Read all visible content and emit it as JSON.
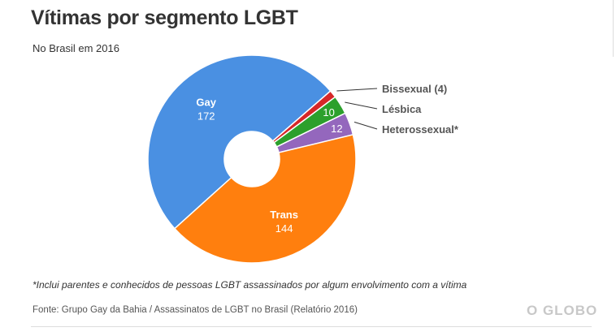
{
  "chart_data": {
    "type": "pie",
    "title": "Vítimas por segmento LGBT",
    "subtitle": "No Brasil em 2016",
    "donut": true,
    "slices": [
      {
        "label": "Gay",
        "value": 172,
        "color": "#4a90e2",
        "value_label": "172"
      },
      {
        "label": "Bissexual (4)",
        "value": 4,
        "color": "#d62728",
        "value_label": ""
      },
      {
        "label": "Lésbica",
        "value": 10,
        "color": "#2ca02c",
        "value_label": "10"
      },
      {
        "label": "Heterossexual*",
        "value": 12,
        "color": "#9467bd",
        "value_label": "12"
      },
      {
        "label": "Trans",
        "value": 144,
        "color": "#ff7f0e",
        "value_label": "144"
      }
    ]
  },
  "note": "*Inclui parentes e conhecidos de pessoas LGBT assassinados por algum envolvimento com a vítima",
  "source": "Fonte: Grupo Gay da Bahia / Assassinatos de LGBT no Brasil (Relatório 2016)",
  "logo": "O GLOBO"
}
